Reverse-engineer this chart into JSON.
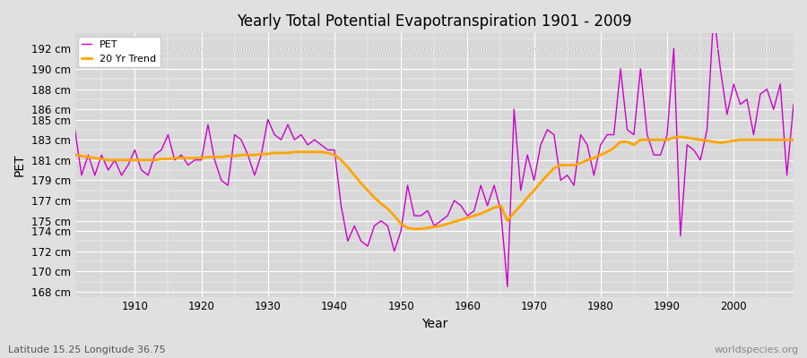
{
  "title": "Yearly Total Potential Evapotranspiration 1901 - 2009",
  "xlabel": "Year",
  "ylabel": "PET",
  "subtitle_left": "Latitude 15.25 Longitude 36.75",
  "watermark": "worldspecies.org",
  "pet_color": "#cc00cc",
  "trend_color": "#ffa500",
  "background_color": "#e0e0e0",
  "plot_bg_color": "#d8d8d8",
  "grid_color": "#ffffff",
  "ylim": [
    167.5,
    193.5
  ],
  "ytick_values": [
    168,
    170,
    172,
    174,
    175,
    177,
    179,
    181,
    183,
    185,
    186,
    188,
    190,
    192
  ],
  "xlim_left": 1901,
  "xlim_right": 2009,
  "xticks": [
    1910,
    1920,
    1930,
    1940,
    1950,
    1960,
    1970,
    1980,
    1990,
    2000
  ],
  "years": [
    1901,
    1902,
    1903,
    1904,
    1905,
    1906,
    1907,
    1908,
    1909,
    1910,
    1911,
    1912,
    1913,
    1914,
    1915,
    1916,
    1917,
    1918,
    1919,
    1920,
    1921,
    1922,
    1923,
    1924,
    1925,
    1926,
    1927,
    1928,
    1929,
    1930,
    1931,
    1932,
    1933,
    1934,
    1935,
    1936,
    1937,
    1938,
    1939,
    1940,
    1941,
    1942,
    1943,
    1944,
    1945,
    1946,
    1947,
    1948,
    1949,
    1950,
    1951,
    1952,
    1953,
    1954,
    1955,
    1956,
    1957,
    1958,
    1959,
    1960,
    1961,
    1962,
    1963,
    1964,
    1965,
    1966,
    1967,
    1968,
    1969,
    1970,
    1971,
    1972,
    1973,
    1974,
    1975,
    1976,
    1977,
    1978,
    1979,
    1980,
    1981,
    1982,
    1983,
    1984,
    1985,
    1986,
    1987,
    1988,
    1989,
    1990,
    1991,
    1992,
    1993,
    1994,
    1995,
    1996,
    1997,
    1998,
    1999,
    2000,
    2001,
    2002,
    2003,
    2004,
    2005,
    2006,
    2007,
    2008,
    2009
  ],
  "pet_values": [
    184.0,
    179.5,
    181.5,
    179.5,
    181.5,
    180.0,
    181.0,
    179.5,
    180.5,
    182.0,
    180.0,
    179.5,
    181.5,
    182.0,
    183.5,
    181.0,
    181.5,
    180.5,
    181.0,
    181.0,
    184.5,
    181.0,
    179.0,
    178.5,
    183.5,
    183.0,
    181.5,
    179.5,
    181.5,
    185.0,
    183.5,
    183.0,
    184.5,
    183.0,
    183.5,
    182.5,
    183.0,
    182.5,
    182.0,
    182.0,
    176.5,
    173.0,
    174.5,
    173.0,
    172.5,
    174.5,
    175.0,
    174.5,
    172.0,
    174.0,
    178.5,
    175.5,
    175.5,
    176.0,
    174.5,
    175.0,
    175.5,
    177.0,
    176.5,
    175.5,
    176.0,
    178.5,
    176.5,
    178.5,
    176.0,
    168.5,
    186.0,
    178.0,
    181.5,
    179.0,
    182.5,
    184.0,
    183.5,
    179.0,
    179.5,
    178.5,
    183.5,
    182.5,
    179.5,
    182.5,
    183.5,
    183.5,
    190.0,
    184.0,
    183.5,
    190.0,
    183.5,
    181.5,
    181.5,
    183.5,
    192.0,
    173.5,
    182.5,
    182.0,
    181.0,
    184.0,
    195.5,
    190.0,
    185.5,
    188.5,
    186.5,
    187.0,
    183.5,
    187.5,
    188.0,
    186.0,
    188.5,
    179.5,
    186.5
  ],
  "trend_values": [
    181.5,
    181.4,
    181.3,
    181.2,
    181.1,
    181.0,
    181.0,
    181.0,
    181.0,
    181.0,
    181.0,
    181.0,
    181.0,
    181.1,
    181.1,
    181.2,
    181.2,
    181.2,
    181.2,
    181.2,
    181.3,
    181.3,
    181.3,
    181.4,
    181.4,
    181.5,
    181.5,
    181.5,
    181.6,
    181.6,
    181.7,
    181.7,
    181.7,
    181.8,
    181.8,
    181.8,
    181.8,
    181.8,
    181.7,
    181.5,
    181.0,
    180.3,
    179.5,
    178.7,
    178.0,
    177.3,
    176.7,
    176.2,
    175.5,
    174.7,
    174.3,
    174.2,
    174.2,
    174.3,
    174.4,
    174.5,
    174.7,
    174.9,
    175.1,
    175.3,
    175.5,
    175.7,
    176.0,
    176.3,
    176.5,
    175.0,
    175.8,
    176.5,
    177.3,
    178.0,
    178.8,
    179.5,
    180.2,
    180.5,
    180.5,
    180.5,
    180.7,
    181.0,
    181.2,
    181.5,
    181.8,
    182.2,
    182.8,
    182.8,
    182.5,
    183.0,
    183.0,
    183.0,
    183.0,
    183.0,
    183.2,
    183.3,
    183.2,
    183.1,
    183.0,
    182.9,
    182.8,
    182.7,
    182.8,
    182.9,
    183.0,
    183.0,
    183.0,
    183.0,
    183.0,
    183.0,
    183.0,
    183.0,
    183.0
  ]
}
